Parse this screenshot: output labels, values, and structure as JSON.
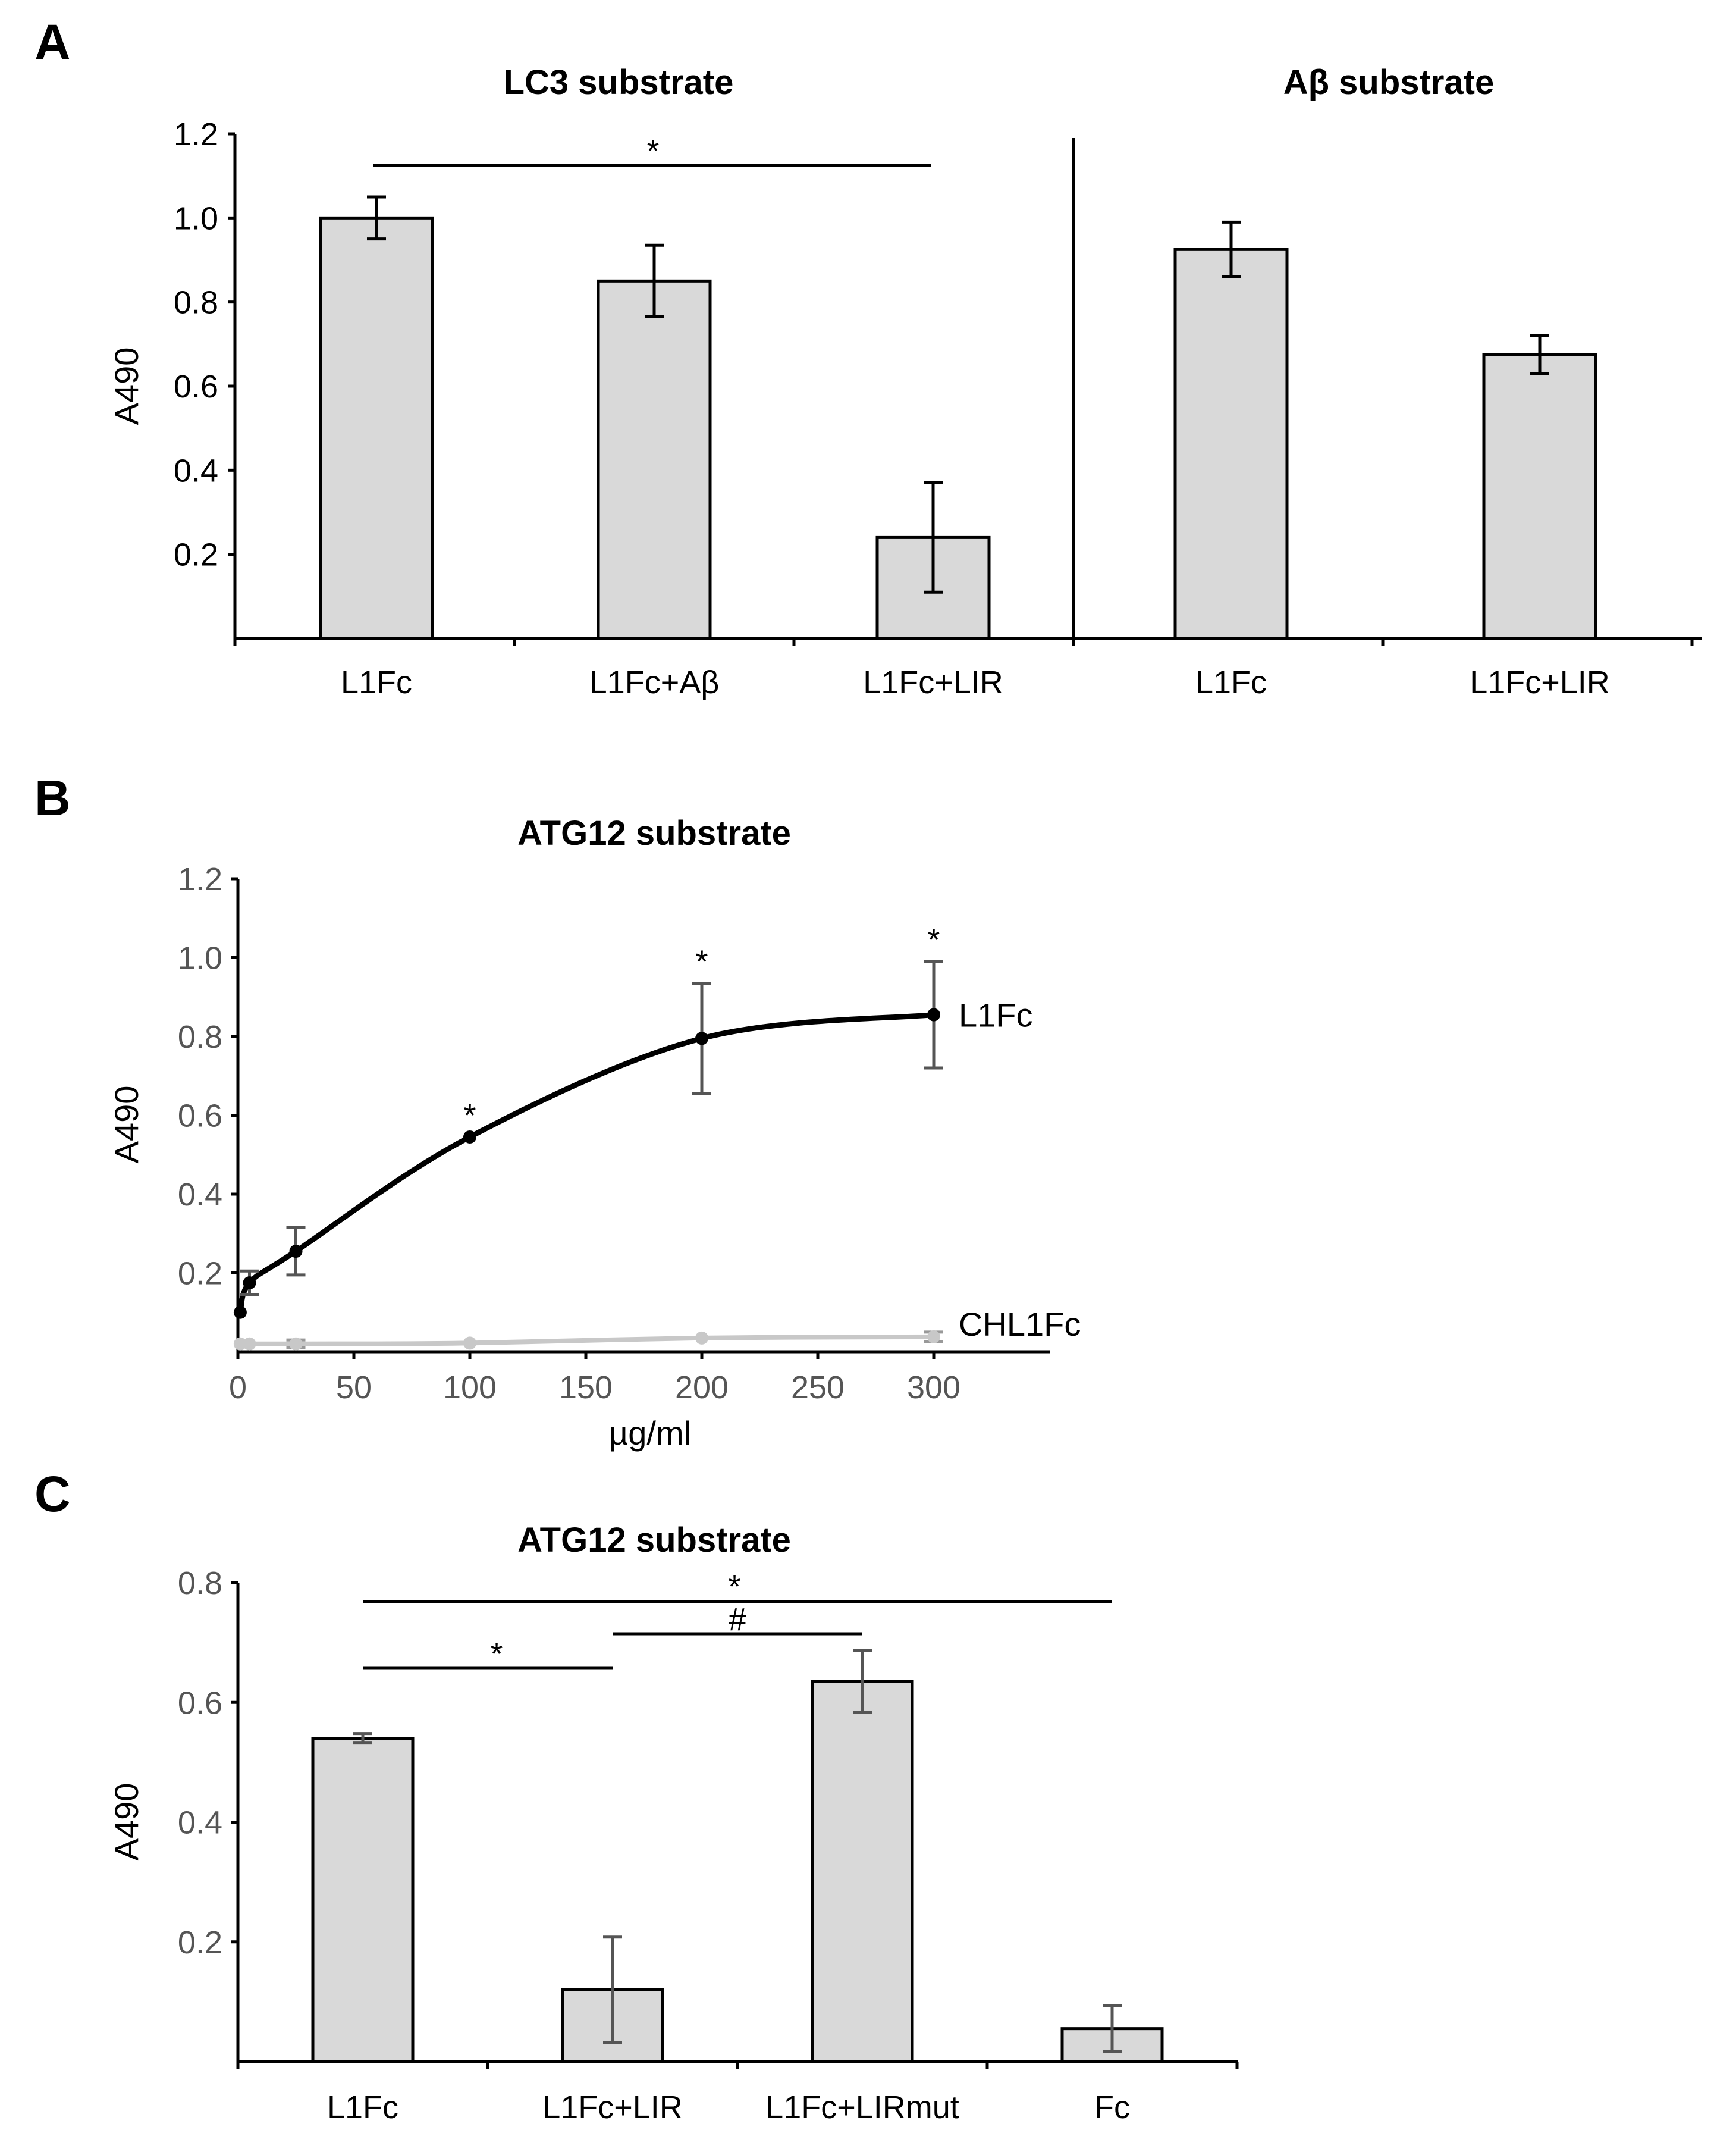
{
  "chart_data": [
    {
      "panel": "A",
      "type": "bar",
      "ylabel": "A490",
      "ylim": [
        0,
        1.2
      ],
      "yticks": [
        0.2,
        0.4,
        0.6,
        0.8,
        1.0,
        1.2
      ],
      "ytick_labels": [
        "0.2",
        "0.4",
        "0.6",
        "0.8",
        "1.0",
        "1.2"
      ],
      "groups": [
        {
          "title": "LC3 substrate",
          "categories": [
            "L1Fc",
            "L1Fc+Aβ",
            "L1Fc+LIR"
          ],
          "values": [
            1.0,
            0.85,
            0.24
          ],
          "errors": [
            0.05,
            0.085,
            0.13
          ]
        },
        {
          "title": "Aβ substrate",
          "categories": [
            "L1Fc",
            "L1Fc+LIR"
          ],
          "values": [
            0.925,
            0.675
          ],
          "errors": [
            0.065,
            0.045
          ]
        }
      ],
      "annotations": [
        {
          "text": "*",
          "from": "L1Fc",
          "to": "L1Fc+LIR",
          "group": "LC3 substrate"
        }
      ]
    },
    {
      "panel": "B",
      "type": "line",
      "title": "ATG12 substrate",
      "xlabel": "µg/ml",
      "ylabel": "A490",
      "xlim": [
        0,
        350
      ],
      "ylim": [
        0,
        1.2
      ],
      "xticks": [
        0,
        50,
        100,
        150,
        200,
        250,
        300
      ],
      "xtick_labels": [
        "0",
        "50",
        "100",
        "150",
        "200",
        "250",
        "300"
      ],
      "yticks": [
        0.2,
        0.4,
        0.6,
        0.8,
        1.0,
        1.2
      ],
      "ytick_labels": [
        "0.2",
        "0.4",
        "0.6",
        "0.8",
        "1.0",
        "1.2"
      ],
      "series": [
        {
          "name": "L1Fc",
          "color": "#000000",
          "x": [
            1,
            5,
            25,
            100,
            200,
            300
          ],
          "y": [
            0.1,
            0.175,
            0.255,
            0.545,
            0.795,
            0.855
          ],
          "errors": [
            0.0,
            0.03,
            0.06,
            0.0,
            0.14,
            0.135
          ],
          "significance": [
            "",
            "",
            "",
            "*",
            "*",
            "*"
          ]
        },
        {
          "name": "CHL1Fc",
          "color": "#c8c8c8",
          "x": [
            1,
            5,
            25,
            100,
            200,
            300
          ],
          "y": [
            0.02,
            0.02,
            0.02,
            0.022,
            0.035,
            0.038
          ],
          "errors": [
            0.0,
            0.0,
            0.01,
            0.0,
            0.0,
            0.012
          ],
          "significance": [
            "",
            "",
            "",
            "",
            "",
            ""
          ]
        }
      ]
    },
    {
      "panel": "C",
      "type": "bar",
      "title": "ATG12 substrate",
      "ylabel": "A490",
      "ylim": [
        0,
        0.8
      ],
      "yticks": [
        0.2,
        0.4,
        0.6,
        0.8
      ],
      "ytick_labels": [
        "0.2",
        "0.4",
        "0.6",
        "0.8"
      ],
      "categories": [
        "L1Fc",
        "L1Fc+LIR",
        "L1Fc+LIRmut",
        "Fc"
      ],
      "values": [
        0.54,
        0.12,
        0.635,
        0.055
      ],
      "errors": [
        0.008,
        0.088,
        0.052,
        0.038
      ],
      "annotations": [
        {
          "text": "*",
          "from": "L1Fc",
          "to": "Fc"
        },
        {
          "text": "#",
          "from": "L1Fc+LIR",
          "to": "L1Fc+LIRmut"
        },
        {
          "text": "*",
          "from": "L1Fc",
          "to": "L1Fc+LIR"
        }
      ]
    }
  ],
  "panel_labels": [
    "A",
    "B",
    "C"
  ]
}
